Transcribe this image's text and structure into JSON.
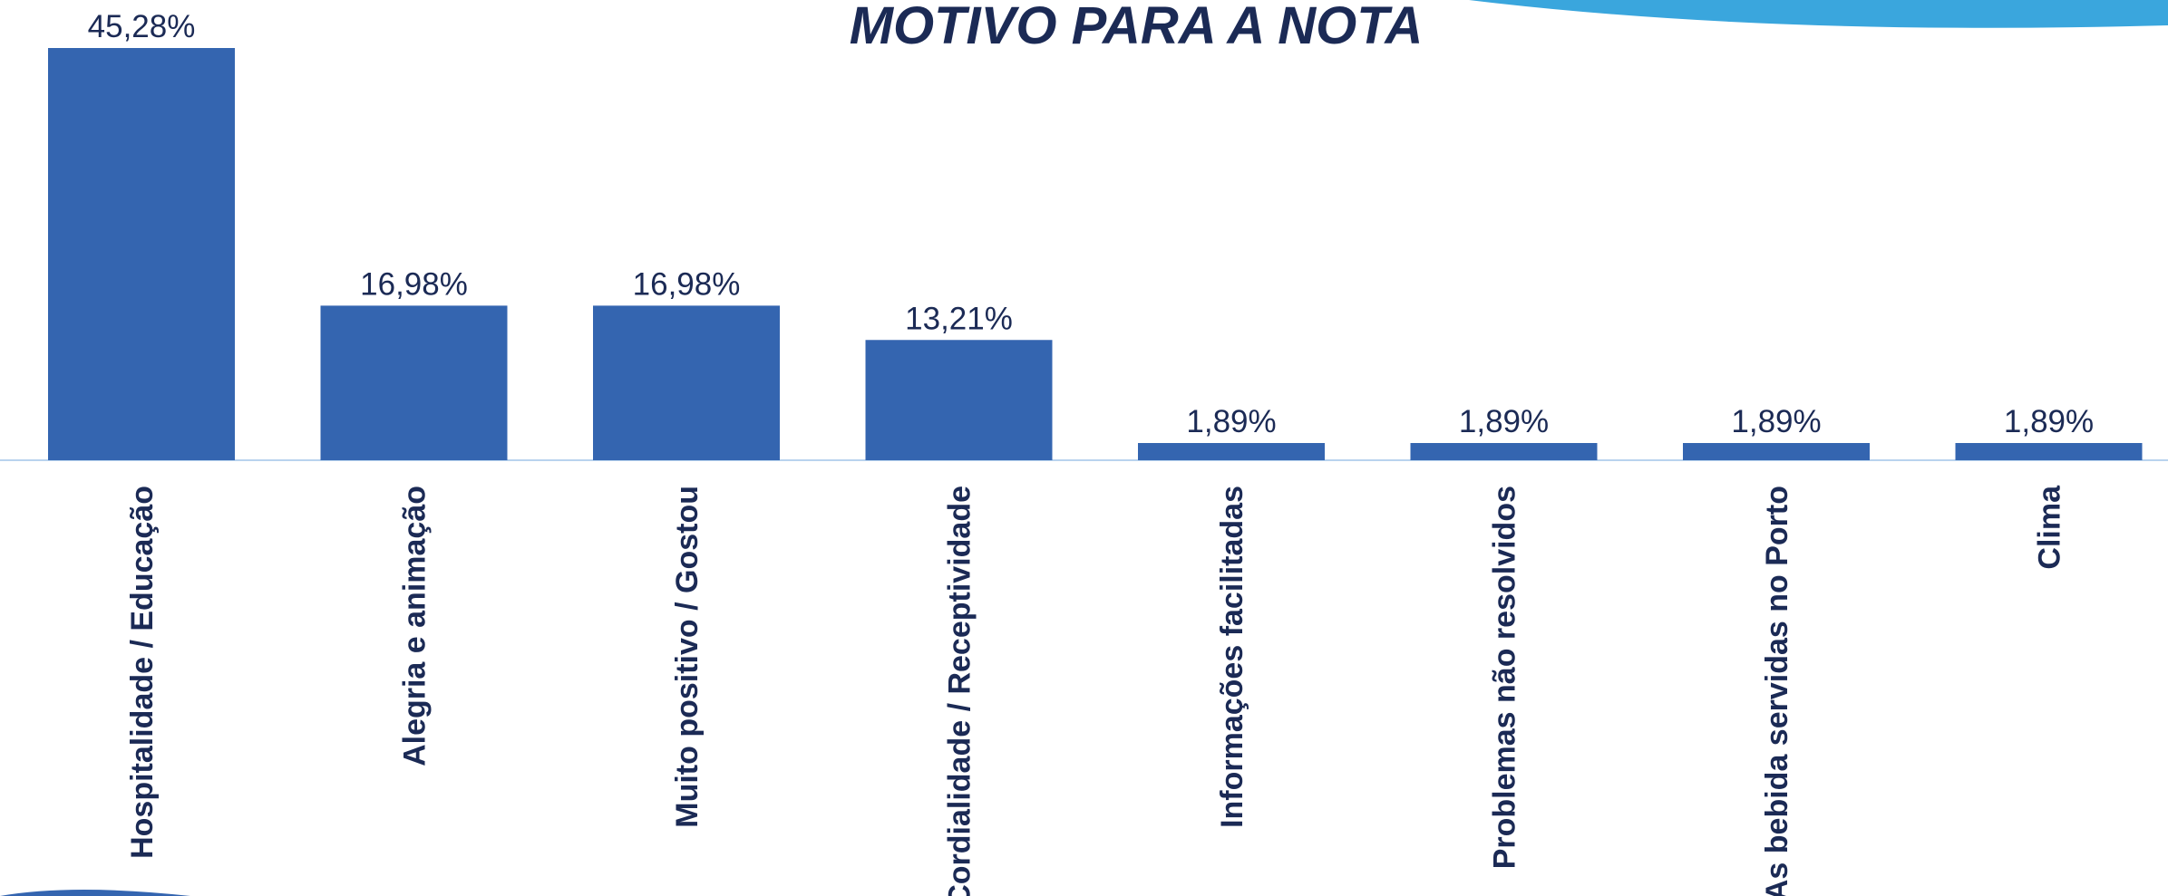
{
  "chart_data": {
    "type": "bar",
    "title": "MOTIVO PARA A NOTA",
    "categories": [
      "Hospitalidade / Educação",
      "Alegria e animação",
      "Muito positivo / Gostou",
      "Cordialidade / Receptividade",
      "Informações facilitadas",
      "Problemas não resolvidos",
      "As bebida servidas no Porto",
      "Clima"
    ],
    "values": [
      45.28,
      16.98,
      16.98,
      13.21,
      1.89,
      1.89,
      1.89,
      1.89
    ],
    "value_labels": [
      "45,28%",
      "16,98%",
      "16,98%",
      "13,21%",
      "1,89%",
      "1,89%",
      "1,89%",
      "1,89%"
    ],
    "color": "#3465b0"
  }
}
